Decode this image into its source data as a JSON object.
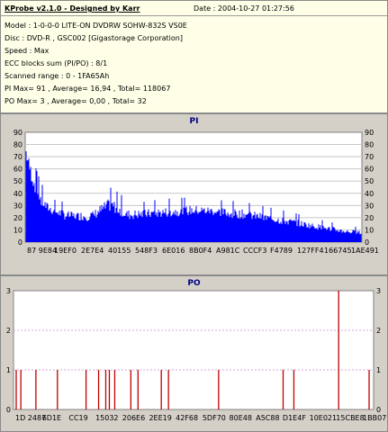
{
  "header": {
    "title": "KProbe v2.1.0 - Designed by Karr",
    "date": "Date : 2004-10-27 01:27:56",
    "model": "Model : 1-0-0-0 LITE-ON DVDRW SOHW-832S  VS0E",
    "disc": "Disc : DVD-R , GSC002 [Gigastorage Corporation]",
    "speed": "Speed : Max",
    "ecc": "ECC blocks sum (PI/PO) : 8/1",
    "range": "Scanned range : 0 - 1FA65Ah",
    "pi_stats": "PI Max= 91 , Average= 16,94 , Total= 118067",
    "po_stats": "PO Max= 3 , Average= 0,00 , Total= 32"
  },
  "colors": {
    "pi_fill": "#0000ff",
    "po_line": "#c00000",
    "header_bg": "#ffffe8",
    "panel_bg": "#d4d0c8",
    "title": "#000080"
  },
  "chart_data": [
    {
      "type": "area",
      "title": "PI",
      "ylim": [
        0,
        90
      ],
      "yticks": [
        0,
        10,
        20,
        30,
        40,
        50,
        60,
        70,
        80,
        90
      ],
      "xtick_labels": [
        "87 9E84",
        "19EF0",
        "2E7E4",
        "40155",
        "548F3",
        "6E016",
        "8B0F4",
        "A981C",
        "CCCF3",
        "F4789",
        "127FF4",
        "166745",
        "1AE491"
      ],
      "grid": true,
      "x": [
        0,
        0.01,
        0.02,
        0.03,
        0.04,
        0.06,
        0.08,
        0.1,
        0.12,
        0.15,
        0.18,
        0.2,
        0.22,
        0.25,
        0.28,
        0.3,
        0.35,
        0.4,
        0.45,
        0.5,
        0.55,
        0.6,
        0.65,
        0.7,
        0.75,
        0.8,
        0.85,
        0.9,
        0.95,
        1.0
      ],
      "series": [
        {
          "name": "",
          "values": [
            67,
            55,
            45,
            38,
            30,
            25,
            22,
            20,
            18,
            18,
            17,
            18,
            21,
            25,
            22,
            18,
            19,
            20,
            21,
            22,
            22,
            20,
            19,
            17,
            15,
            13,
            11,
            9,
            7,
            6
          ]
        },
        {
          "name": "",
          "values": [
            91,
            78,
            70,
            60,
            52,
            40,
            35,
            34,
            32,
            30,
            33,
            32,
            38,
            45,
            40,
            34,
            33,
            35,
            36,
            37,
            35,
            34,
            33,
            30,
            27,
            24,
            20,
            17,
            14,
            12
          ]
        }
      ]
    },
    {
      "type": "bar",
      "title": "PO",
      "ylim": [
        0,
        3
      ],
      "yticks": [
        0,
        1,
        2,
        3
      ],
      "xtick_labels": [
        "1D 2487",
        "6D1E",
        "CC19",
        "15032",
        "206E6",
        "2EE19",
        "42F68",
        "5DF70",
        "80E48",
        "A5C88",
        "D1E4F",
        "10E021",
        "15CBE8",
        "1BB077"
      ],
      "grid": true,
      "x": [
        0.005,
        0.018,
        0.06,
        0.12,
        0.2,
        0.235,
        0.255,
        0.265,
        0.28,
        0.325,
        0.345,
        0.41,
        0.43,
        0.57,
        0.75,
        0.78,
        0.905,
        0.99
      ],
      "values": [
        1,
        1,
        1,
        1,
        1,
        1,
        1,
        1,
        1,
        1,
        1,
        1,
        1,
        1,
        1,
        1,
        3,
        1
      ]
    }
  ]
}
